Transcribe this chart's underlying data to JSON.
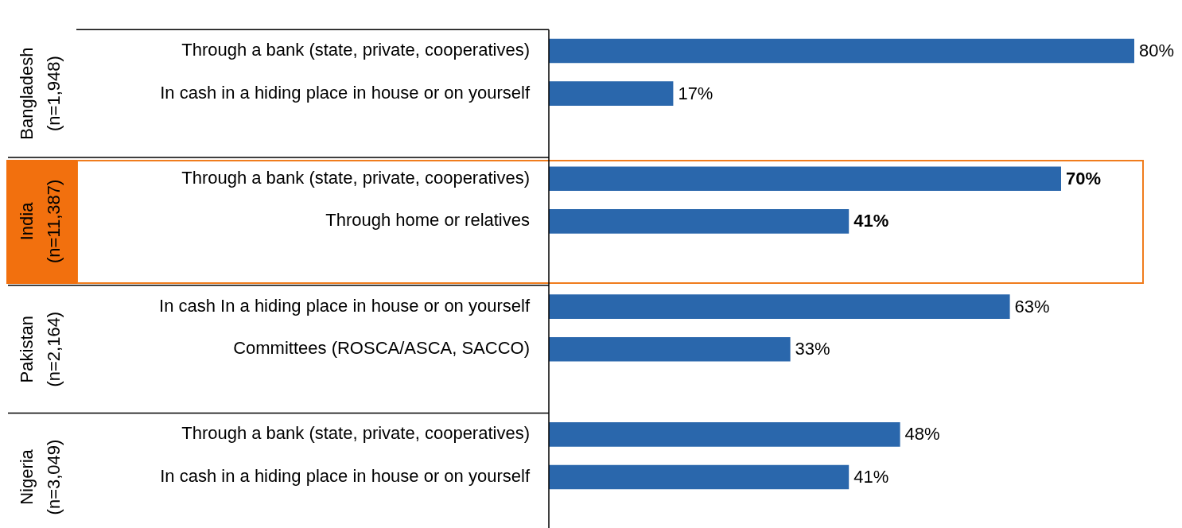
{
  "chart_data": {
    "type": "bar",
    "orientation": "horizontal",
    "categories": [
      "Through a bank (state, private, cooperatives)",
      "In cash in a hiding place in house or on yourself",
      null,
      "Through a bank (state, private, cooperatives)",
      "Through home or relatives",
      null,
      "In cash In a hiding place in house or on yourself",
      "Committees (ROSCA/ASCA, SACCO)",
      null,
      "Through a bank (state, private, cooperatives)",
      "In cash in a hiding place in house or on yourself"
    ],
    "values": [
      80,
      17,
      null,
      70,
      41,
      null,
      63,
      33,
      null,
      48,
      41
    ],
    "color": "#2a67ac",
    "value_labels": [
      "80%",
      "17%",
      null,
      "70%",
      "41%",
      null,
      "63%",
      "33%",
      null,
      "48%",
      "41%"
    ],
    "annotations": [
      "Bangladesh\n(n=1,948)",
      "India\n(n=11,387)",
      "Pakistan\n(n=2,164)",
      "Nigeria\n(n=3,049)"
    ]
  }
}
